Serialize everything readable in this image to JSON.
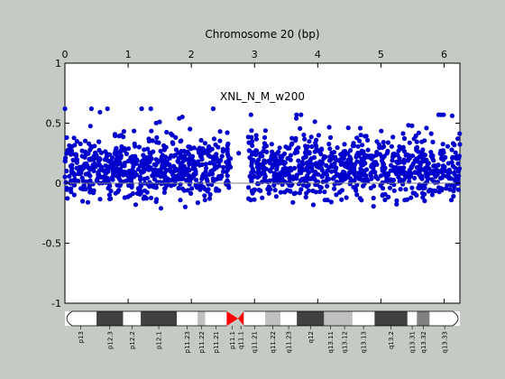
{
  "chart_data": {
    "type": "scatter",
    "title": "Chromosome 20 (bp)",
    "annotation": "XNL_N_M_w200",
    "x_tick_labels": [
      "0",
      "1",
      "2",
      "3",
      "4",
      "5",
      "6"
    ],
    "x_ticks": [
      0,
      1,
      2,
      3,
      4,
      5,
      6
    ],
    "xlim": [
      0,
      6.25
    ],
    "y_tick_labels": [
      "1",
      "0.5",
      "0",
      "-0.5",
      "-1"
    ],
    "y_ticks": [
      1,
      0.5,
      0,
      -0.5,
      -1
    ],
    "ylim": [
      -1,
      1
    ],
    "grid": false,
    "baseline": 0,
    "point_color": "#0000cc",
    "baseline_color": "#808080",
    "gap_region": [
      2.62,
      2.9
    ],
    "isolated_point": {
      "x": 2.75,
      "y": 0.25
    },
    "series": [
      {
        "color": "#0000cc",
        "segments": [
          {
            "x_start": 0.0,
            "x_end": 2.62,
            "typical_y_range": [
              -0.1,
              0.35
            ],
            "max_y": 0.62,
            "min_y": -0.25
          },
          {
            "x_start": 2.9,
            "x_end": 6.25,
            "typical_y_range": [
              -0.1,
              0.35
            ],
            "max_y": 0.57,
            "min_y": -0.25
          }
        ]
      }
    ]
  },
  "ideogram": {
    "centromere_color": "#ff0000",
    "bands": [
      {
        "label": "p13",
        "start": 0.0,
        "end": 0.5,
        "shade": "#ffffff"
      },
      {
        "label": "p12.3",
        "start": 0.5,
        "end": 0.92,
        "shade": "#404040"
      },
      {
        "label": "p12.2",
        "start": 0.92,
        "end": 1.2,
        "shade": "#ffffff"
      },
      {
        "label": "p12.1",
        "start": 1.2,
        "end": 1.77,
        "shade": "#404040"
      },
      {
        "label": "p11.23",
        "start": 1.77,
        "end": 2.1,
        "shade": "#ffffff"
      },
      {
        "label": "p11.22",
        "start": 2.1,
        "end": 2.22,
        "shade": "#c0c0c0"
      },
      {
        "label": "p11.21",
        "start": 2.22,
        "end": 2.56,
        "shade": "#ffffff"
      },
      {
        "label": "p11.1",
        "start": 2.56,
        "end": 2.74,
        "shade": "centromere"
      },
      {
        "label": "q11.1",
        "start": 2.74,
        "end": 2.83,
        "shade": "centromere"
      },
      {
        "label": "q11.21",
        "start": 2.83,
        "end": 3.17,
        "shade": "#ffffff"
      },
      {
        "label": "q11.22",
        "start": 3.17,
        "end": 3.41,
        "shade": "#c0c0c0"
      },
      {
        "label": "q11.23",
        "start": 3.41,
        "end": 3.67,
        "shade": "#ffffff"
      },
      {
        "label": "q12",
        "start": 3.67,
        "end": 4.1,
        "shade": "#404040"
      },
      {
        "label": "q13.11",
        "start": 4.1,
        "end": 4.3,
        "shade": "#c0c0c0"
      },
      {
        "label": "q13.12",
        "start": 4.3,
        "end": 4.55,
        "shade": "#c0c0c0"
      },
      {
        "label": "q13.13",
        "start": 4.55,
        "end": 4.9,
        "shade": "#ffffff"
      },
      {
        "label": "q13.2",
        "start": 4.9,
        "end": 5.42,
        "shade": "#404040"
      },
      {
        "label": "q13.31",
        "start": 5.42,
        "end": 5.57,
        "shade": "#ffffff"
      },
      {
        "label": "q13.32",
        "start": 5.57,
        "end": 5.77,
        "shade": "#808080"
      },
      {
        "label": "q13.33",
        "start": 5.77,
        "end": 6.25,
        "shade": "#ffffff"
      }
    ]
  }
}
